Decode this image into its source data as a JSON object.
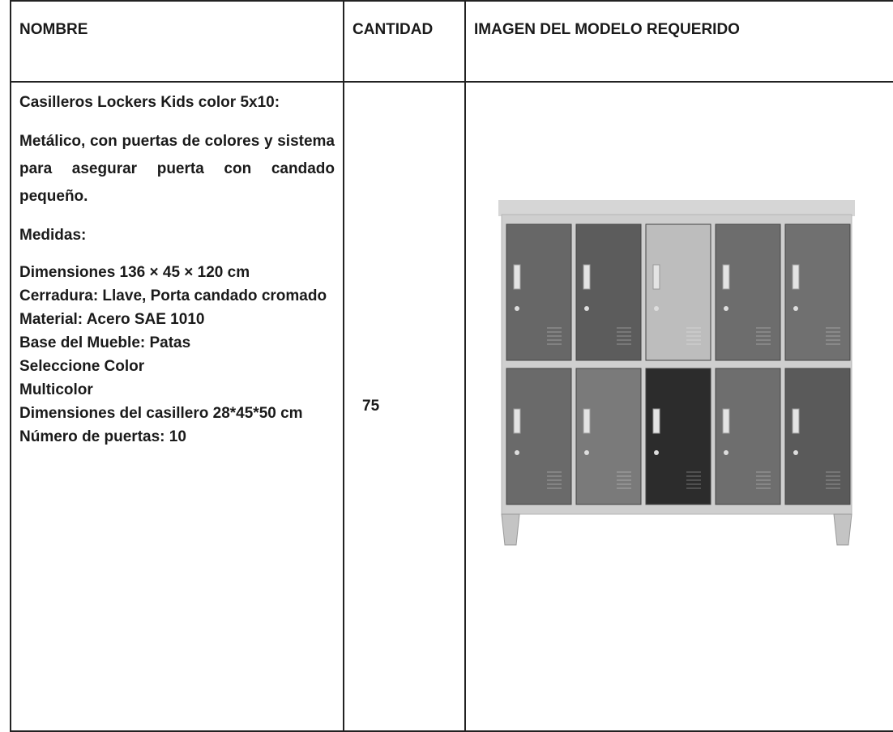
{
  "table": {
    "headers": [
      "NOMBRE",
      "CANTIDAD",
      "IMAGEN DEL MODELO REQUERIDO"
    ],
    "rows": [
      [
        {
          "title": "Casilleros Lockers Kids color 5x10:",
          "description": "Metálico, con puertas de colores y sistema para asegurar puerta con candado pequeño.",
          "measures_label": "Medidas:",
          "specs": [
            "Dimensiones 136 × 45 × 120 cm",
            "Cerradura: Llave, Porta candado cromado",
            "Material: Acero SAE 1010",
            "Base del Mueble: Patas",
            "Seleccione Color",
            "Multicolor",
            "Dimensiones del casillero 28*45*50 cm",
            "Número de puertas: 10"
          ]
        },
        "75"
      ]
    ]
  }
}
